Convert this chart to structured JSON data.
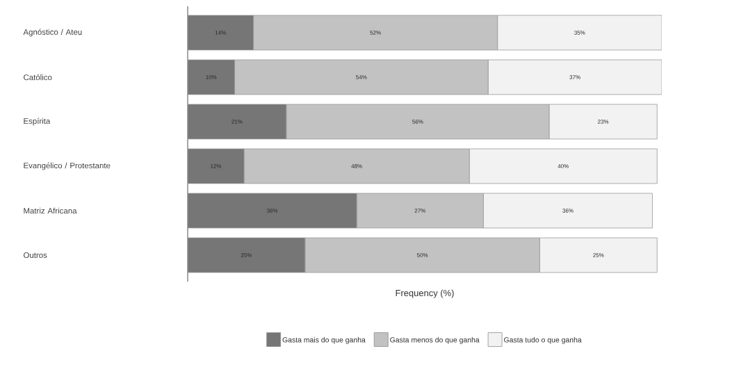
{
  "chart_data": {
    "type": "bar",
    "orientation": "horizontal",
    "stacked": true,
    "xlabel": "Frequency (%)",
    "legend": "bottom",
    "categories": [
      "Agnóstico / Ateu",
      "Católico",
      "Espírita",
      "Evangélico / Protestante",
      "Matriz Africana",
      "Outros"
    ],
    "series": [
      {
        "name": "Gasta mais do que ganha",
        "color": "#767676",
        "values": [
          14,
          10,
          21,
          12,
          36,
          25
        ],
        "value_labels": [
          "14%",
          "10%",
          "21%",
          "12%",
          "36%",
          "25%"
        ]
      },
      {
        "name": "Gasta menos do que ganha",
        "color": "#c2c2c2",
        "values": [
          52,
          54,
          56,
          48,
          27,
          50
        ],
        "value_labels": [
          "52%",
          "54%",
          "56%",
          "48%",
          "27%",
          "50%"
        ]
      },
      {
        "name": "Gasta tudo o que ganha",
        "color": "#f2f2f2",
        "values": [
          35,
          37,
          23,
          40,
          36,
          25
        ],
        "value_labels": [
          "35%",
          "37%",
          "23%",
          "40%",
          "36%",
          "25%"
        ]
      }
    ]
  }
}
